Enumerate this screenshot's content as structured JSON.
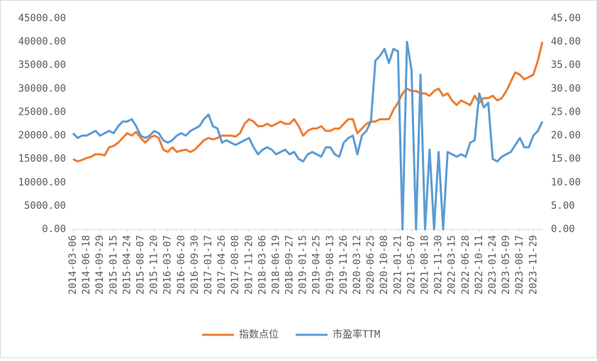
{
  "chart_data": {
    "type": "line",
    "categories": [
      "2014-03-06",
      null,
      null,
      "2014-06-18",
      null,
      null,
      "2014-09-29",
      null,
      null,
      "2015-01-15",
      null,
      null,
      "2015-04-24",
      null,
      null,
      "2015-08-07",
      null,
      null,
      "2015-11-20",
      null,
      null,
      "2016-03-07",
      null,
      null,
      "2016-06-20",
      null,
      null,
      "2016-09-30",
      null,
      null,
      "2017-01-17",
      null,
      null,
      "2017-04-26",
      null,
      null,
      "2017-08-08",
      null,
      null,
      "2017-11-20",
      null,
      null,
      "2018-03-06",
      null,
      null,
      "2018-06-19",
      null,
      null,
      "2018-09-27",
      null,
      null,
      "2019-01-15",
      null,
      null,
      "2019-04-25",
      null,
      null,
      "2019-08-13",
      null,
      null,
      "2019-11-26",
      null,
      null,
      "2020-03-12",
      null,
      null,
      "2020-06-25",
      null,
      null,
      "2020-10-08",
      null,
      null,
      "2021-01-21",
      null,
      null,
      "2021-05-07",
      null,
      null,
      "2021-08-18",
      null,
      null,
      "2021-11-30",
      null,
      null,
      "2022-03-15",
      null,
      null,
      "2022-06-28",
      null,
      null,
      "2022-10-11",
      null,
      null,
      "2023-01-24",
      null,
      null,
      "2023-05-09",
      null,
      null,
      "2023-08-17",
      null,
      null,
      "2023-11-29",
      null,
      null
    ],
    "series": [
      {
        "name": "指数点位",
        "color": "#ed7d31",
        "axis": "y",
        "values": [
          15000,
          14500,
          14800,
          15200,
          15500,
          16000,
          16000,
          15800,
          17500,
          17800,
          18500,
          19500,
          20500,
          20000,
          20800,
          19500,
          18500,
          19500,
          20000,
          19500,
          17000,
          16500,
          17500,
          16500,
          16800,
          17000,
          16500,
          17000,
          18000,
          19000,
          19500,
          19200,
          19500,
          20000,
          20000,
          20000,
          19800,
          20500,
          22500,
          23500,
          23000,
          22000,
          22000,
          22500,
          22000,
          22500,
          23000,
          22500,
          22500,
          23500,
          22000,
          20000,
          21000,
          21500,
          21500,
          22000,
          21000,
          21000,
          21500,
          21500,
          22500,
          23500,
          23500,
          20500,
          21500,
          22500,
          23000,
          23000,
          23500,
          23500,
          23500,
          25500,
          27000,
          29000,
          30000,
          29500,
          29500,
          29000,
          29000,
          28500,
          29500,
          30000,
          28500,
          29000,
          27500,
          26500,
          27500,
          27000,
          26500,
          28500,
          27000,
          28000,
          28000,
          28500,
          27500,
          28000,
          29500,
          31500,
          33500,
          33000,
          32000,
          32500,
          33000,
          36000,
          40000
        ]
      },
      {
        "name": "市盈率TTM",
        "color": "#5b9bd5",
        "axis": "y2",
        "values": [
          20.5,
          19.5,
          20,
          20,
          20.5,
          21,
          20,
          20.5,
          21,
          20.5,
          22,
          23,
          23,
          23.5,
          22,
          20,
          19.5,
          20,
          21,
          20.5,
          19,
          18.5,
          19,
          20,
          20.5,
          20,
          21,
          21.5,
          22,
          23.5,
          24.5,
          22,
          21.5,
          18.5,
          19,
          18.5,
          18,
          18.5,
          19,
          19.5,
          17.5,
          16,
          17,
          17.5,
          17,
          16,
          16.5,
          17,
          16,
          16.5,
          15,
          14.5,
          16,
          16.5,
          16,
          15.5,
          17.5,
          17.5,
          16,
          15.5,
          18.5,
          19.5,
          20,
          16,
          20,
          21,
          23,
          36,
          37,
          38.5,
          35.5,
          38.5,
          38,
          0,
          40,
          34,
          0,
          33,
          0,
          17,
          0,
          16.5,
          0,
          16.5,
          16,
          15.5,
          16,
          15.5,
          18.5,
          19,
          29,
          26,
          27,
          15,
          14.5,
          15.5,
          16,
          16.5,
          18,
          19.5,
          17.5,
          17.5,
          20,
          21,
          23
        ]
      }
    ],
    "ylim": [
      0,
      45000
    ],
    "yticks": [
      {
        "value": 0,
        "label": "0.00"
      },
      {
        "value": 5000,
        "label": "5000.00"
      },
      {
        "value": 10000,
        "label": "10000.00"
      },
      {
        "value": 15000,
        "label": "15000.00"
      },
      {
        "value": 20000,
        "label": "20000.00"
      },
      {
        "value": 25000,
        "label": "25000.00"
      },
      {
        "value": 30000,
        "label": "30000.00"
      },
      {
        "value": 35000,
        "label": "35000.00"
      },
      {
        "value": 40000,
        "label": "40000.00"
      },
      {
        "value": 45000,
        "label": "45000.00"
      }
    ],
    "y2lim": [
      0,
      45
    ],
    "y2ticks": [
      {
        "value": 0,
        "label": "0.00"
      },
      {
        "value": 5,
        "label": "5.00"
      },
      {
        "value": 10,
        "label": "10.00"
      },
      {
        "value": 15,
        "label": "15.00"
      },
      {
        "value": 20,
        "label": "20.00"
      },
      {
        "value": 25,
        "label": "25.00"
      },
      {
        "value": 30,
        "label": "30.00"
      },
      {
        "value": 35,
        "label": "35.00"
      },
      {
        "value": 40,
        "label": "40.00"
      },
      {
        "value": 45,
        "label": "45.00"
      }
    ],
    "legend": "bottom"
  }
}
